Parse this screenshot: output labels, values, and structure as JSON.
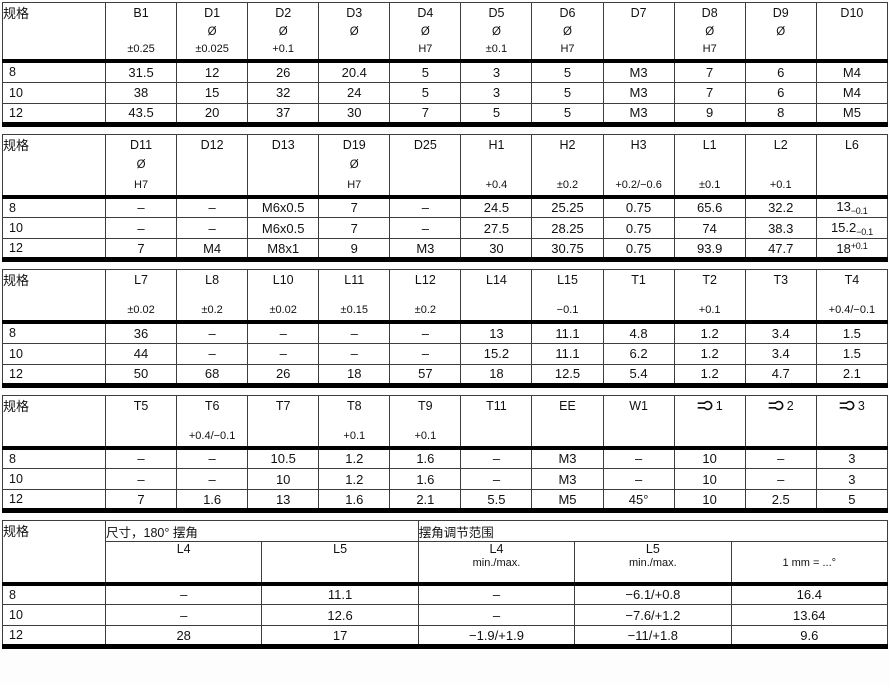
{
  "page": {
    "background": "#ffffff",
    "text_color": "#111111",
    "border_thin": "#3d3d3d",
    "border_thick": "#000000",
    "spec_label": "规格"
  },
  "tables": [
    {
      "id": "dimensions-table-1",
      "spec_label": "规格",
      "columns": [
        {
          "name": "B1",
          "symbol": "",
          "tol": "±0.25"
        },
        {
          "name": "D1",
          "symbol": "Ø",
          "tol": "±0.025"
        },
        {
          "name": "D2",
          "symbol": "Ø",
          "tol": "+0.1"
        },
        {
          "name": "D3",
          "symbol": "Ø",
          "tol": ""
        },
        {
          "name": "D4",
          "symbol": "Ø",
          "tol": "H7"
        },
        {
          "name": "D5",
          "symbol": "Ø",
          "tol": "±0.1"
        },
        {
          "name": "D6",
          "symbol": "Ø",
          "tol": "H7"
        },
        {
          "name": "D7",
          "symbol": "",
          "tol": ""
        },
        {
          "name": "D8",
          "symbol": "Ø",
          "tol": "H7"
        },
        {
          "name": "D9",
          "symbol": "Ø",
          "tol": ""
        },
        {
          "name": "D10",
          "symbol": "",
          "tol": ""
        }
      ],
      "rows": [
        {
          "spec": "8",
          "values": [
            "31.5",
            "12",
            "26",
            "20.4",
            "5",
            "3",
            "5",
            "M3",
            "7",
            "6",
            "M4"
          ]
        },
        {
          "spec": "10",
          "values": [
            "38",
            "15",
            "32",
            "24",
            "5",
            "3",
            "5",
            "M3",
            "7",
            "6",
            "M4"
          ]
        },
        {
          "spec": "12",
          "values": [
            "43.5",
            "20",
            "37",
            "30",
            "7",
            "5",
            "5",
            "M3",
            "9",
            "8",
            "M5"
          ]
        }
      ]
    },
    {
      "id": "dimensions-table-2",
      "spec_label": "规格",
      "columns": [
        {
          "name": "D11",
          "symbol": "Ø",
          "tol": "H7"
        },
        {
          "name": "D12",
          "symbol": "",
          "tol": ""
        },
        {
          "name": "D13",
          "symbol": "",
          "tol": ""
        },
        {
          "name": "D19",
          "symbol": "Ø",
          "tol": "H7"
        },
        {
          "name": "D25",
          "symbol": "",
          "tol": ""
        },
        {
          "name": "H1",
          "symbol": "",
          "tol": "+0.4"
        },
        {
          "name": "H2",
          "symbol": "",
          "tol": "±0.2"
        },
        {
          "name": "H3",
          "symbol": "",
          "tol": "+0.2/−0.6"
        },
        {
          "name": "L1",
          "symbol": "",
          "tol": "±0.1"
        },
        {
          "name": "L2",
          "symbol": "",
          "tol": "+0.1"
        },
        {
          "name": "L6",
          "symbol": "",
          "tol": ""
        }
      ],
      "rows": [
        {
          "spec": "8",
          "values": [
            "–",
            "–",
            "M6x0.5",
            "7",
            "–",
            "24.5",
            "25.25",
            "0.75",
            "65.6",
            "32.2",
            {
              "main": "13",
              "sub": "−0.1"
            }
          ]
        },
        {
          "spec": "10",
          "values": [
            "–",
            "–",
            "M6x0.5",
            "7",
            "–",
            "27.5",
            "28.25",
            "0.75",
            "74",
            "38.3",
            {
              "main": "15.2",
              "sub": "−0.1"
            }
          ]
        },
        {
          "spec": "12",
          "values": [
            "7",
            "M4",
            "M8x1",
            "9",
            "M3",
            "30",
            "30.75",
            "0.75",
            "93.9",
            "47.7",
            {
              "main": "18",
              "sup": "+0.1"
            }
          ]
        }
      ]
    },
    {
      "id": "dimensions-table-3",
      "spec_label": "规格",
      "columns": [
        {
          "name": "L7",
          "symbol": "",
          "tol": "±0.02"
        },
        {
          "name": "L8",
          "symbol": "",
          "tol": "±0.2"
        },
        {
          "name": "L10",
          "symbol": "",
          "tol": "±0.02"
        },
        {
          "name": "L11",
          "symbol": "",
          "tol": "±0.15"
        },
        {
          "name": "L12",
          "symbol": "",
          "tol": "±0.2"
        },
        {
          "name": "L14",
          "symbol": "",
          "tol": ""
        },
        {
          "name": "L15",
          "symbol": "",
          "tol": "−0.1"
        },
        {
          "name": "T1",
          "symbol": "",
          "tol": ""
        },
        {
          "name": "T2",
          "symbol": "",
          "tol": "+0.1"
        },
        {
          "name": "T3",
          "symbol": "",
          "tol": ""
        },
        {
          "name": "T4",
          "symbol": "",
          "tol": "+0.4/−0.1"
        }
      ],
      "rows": [
        {
          "spec": "8",
          "values": [
            "36",
            "–",
            "–",
            "–",
            "–",
            "13",
            "11.1",
            "4.8",
            "1.2",
            "3.4",
            "1.5"
          ]
        },
        {
          "spec": "10",
          "values": [
            "44",
            "–",
            "–",
            "–",
            "–",
            "15.2",
            "11.1",
            "6.2",
            "1.2",
            "3.4",
            "1.5"
          ]
        },
        {
          "spec": "12",
          "values": [
            "50",
            "68",
            "26",
            "18",
            "57",
            "18",
            "12.5",
            "5.4",
            "1.2",
            "4.7",
            "2.1"
          ]
        }
      ]
    },
    {
      "id": "dimensions-table-4",
      "spec_label": "规格",
      "columns": [
        {
          "name": "T5",
          "symbol": "",
          "tol": ""
        },
        {
          "name": "T6",
          "symbol": "",
          "tol": "+0.4/−0.1"
        },
        {
          "name": "T7",
          "symbol": "",
          "tol": ""
        },
        {
          "name": "T8",
          "symbol": "",
          "tol": "+0.1"
        },
        {
          "name": "T9",
          "symbol": "",
          "tol": "+0.1"
        },
        {
          "name": "T11",
          "symbol": "",
          "tol": ""
        },
        {
          "name": "EE",
          "symbol": "",
          "tol": ""
        },
        {
          "name": "W1",
          "symbol": "",
          "tol": ""
        },
        {
          "name": "1",
          "icon": "wrench-icon",
          "symbol": "",
          "tol": ""
        },
        {
          "name": "2",
          "icon": "wrench-icon",
          "symbol": "",
          "tol": ""
        },
        {
          "name": "3",
          "icon": "wrench-icon",
          "symbol": "",
          "tol": ""
        }
      ],
      "rows": [
        {
          "spec": "8",
          "values": [
            "–",
            "–",
            "10.5",
            "1.2",
            "1.6",
            "–",
            "M3",
            "–",
            "10",
            "–",
            "3"
          ]
        },
        {
          "spec": "10",
          "values": [
            "–",
            "–",
            "10",
            "1.2",
            "1.6",
            "–",
            "M3",
            "–",
            "10",
            "–",
            "3"
          ]
        },
        {
          "spec": "12",
          "values": [
            "7",
            "1.6",
            "13",
            "1.6",
            "2.1",
            "5.5",
            "M5",
            "45°",
            "10",
            "2.5",
            "5"
          ]
        }
      ]
    },
    {
      "id": "swivel-angle-table",
      "spec_label": "规格",
      "groups": [
        {
          "label": "尺寸，180° 摆角",
          "span": 2
        },
        {
          "label": "摆角调节范围",
          "span": 3
        }
      ],
      "columns": [
        {
          "name": "L4",
          "tol": ""
        },
        {
          "name": "L5",
          "tol": ""
        },
        {
          "name": "L4",
          "tol": "min./max."
        },
        {
          "name": "L5",
          "tol": "min./max."
        },
        {
          "name": "",
          "tol": "1 mm = ...°"
        }
      ],
      "rows": [
        {
          "spec": "8",
          "values": [
            "–",
            "11.1",
            "–",
            "−6.1/+0.8",
            "16.4"
          ]
        },
        {
          "spec": "10",
          "values": [
            "–",
            "12.6",
            "–",
            "−7.6/+1.2",
            "13.64"
          ]
        },
        {
          "spec": "12",
          "values": [
            "28",
            "17",
            "−1.9/+1.9",
            "−11/+1.8",
            "9.6"
          ]
        }
      ]
    }
  ]
}
